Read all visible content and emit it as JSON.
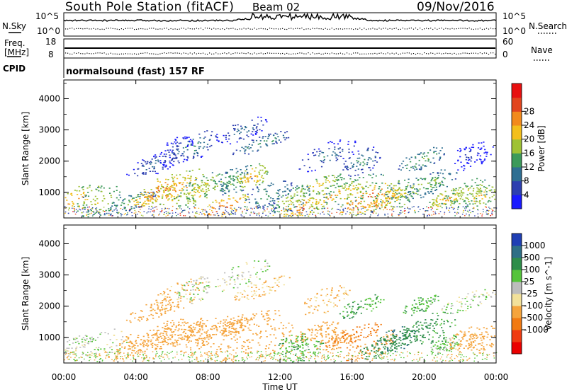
{
  "header": {
    "station": "South Pole Station (fitACF)",
    "beam": "Beam 02",
    "date": "09/Nov/2016"
  },
  "panels": {
    "nsky_label": "N.Sky",
    "nsky_ticks": [
      "10^5",
      "10^0"
    ],
    "nsearch_label": "N.Search",
    "freq_label": "Freq.",
    "freq_unit": "[MHz]",
    "freq_ticks": [
      "18",
      "8"
    ],
    "nave_label": "Nave",
    "nave_ticks": [
      "60",
      "0"
    ],
    "cpid_label": "CPID",
    "cpid_text": "normalsound (fast) 157 RF"
  },
  "axes": {
    "xlabel": "Time UT",
    "xticks": [
      "00:00",
      "04:00",
      "08:00",
      "12:00",
      "16:00",
      "20:00",
      "00:00"
    ],
    "ylabel": "Slant Range [km]",
    "yticks": [
      "1000",
      "2000",
      "3000",
      "4000"
    ]
  },
  "colorbars": {
    "power": {
      "label": "Power [dB]",
      "ticks": [
        "4",
        "8",
        "12",
        "16",
        "20",
        "24",
        "28"
      ],
      "colors": [
        "#1a1aff",
        "#2d3fb0",
        "#2f6f92",
        "#3c9a5a",
        "#9fc234",
        "#f3bf1c",
        "#f28a1c",
        "#e2451e",
        "#e81010"
      ]
    },
    "velocity": {
      "label": "Velocity [m s^-1]",
      "ticks": [
        "1000",
        "500",
        "100",
        "25",
        "-25",
        "-100",
        "-500",
        "-1000"
      ],
      "colors": [
        "#1f3fb4",
        "#2e6f86",
        "#2e8d4a",
        "#55c43a",
        "#bdbdbd",
        "#f2e19a",
        "#f5a43c",
        "#f27a12",
        "#ef3b12",
        "#ea0000"
      ]
    }
  },
  "chart_data": [
    {
      "type": "heatmap",
      "name": "Power",
      "xlabel": "Time UT",
      "ylabel": "Slant Range [km]",
      "xlim": [
        0,
        24
      ],
      "ylim": [
        180,
        4600
      ],
      "colorbar": "Power [dB]",
      "zlim": [
        0,
        30
      ],
      "blobs": [
        {
          "t": 0.5,
          "r": 750,
          "z": 22
        },
        {
          "t": 1.9,
          "r": 700,
          "z": 18
        },
        {
          "t": 3.5,
          "r": 650,
          "z": 14
        },
        {
          "t": 4.8,
          "r": 900,
          "z": 24
        },
        {
          "t": 5.6,
          "r": 1100,
          "z": 26
        },
        {
          "t": 6.5,
          "r": 1200,
          "z": 22
        },
        {
          "t": 7.3,
          "r": 1000,
          "z": 20
        },
        {
          "t": 8.0,
          "r": 1250,
          "z": 18
        },
        {
          "t": 8.7,
          "r": 500,
          "z": 26
        },
        {
          "t": 9.5,
          "r": 1400,
          "z": 14
        },
        {
          "t": 10.4,
          "r": 1500,
          "z": 22
        },
        {
          "t": 11.3,
          "r": 950,
          "z": 12
        },
        {
          "t": 12.5,
          "r": 800,
          "z": 16
        },
        {
          "t": 13.2,
          "r": 500,
          "z": 24
        },
        {
          "t": 14.0,
          "r": 1200,
          "z": 20
        },
        {
          "t": 15.0,
          "r": 900,
          "z": 22
        },
        {
          "t": 16.1,
          "r": 1100,
          "z": 18
        },
        {
          "t": 16.8,
          "r": 800,
          "z": 26
        },
        {
          "t": 17.5,
          "r": 700,
          "z": 24
        },
        {
          "t": 18.3,
          "r": 900,
          "z": 20
        },
        {
          "t": 19.3,
          "r": 1100,
          "z": 16
        },
        {
          "t": 20.4,
          "r": 1300,
          "z": 14
        },
        {
          "t": 21.2,
          "r": 800,
          "z": 22
        },
        {
          "t": 22.4,
          "r": 1000,
          "z": 18
        },
        {
          "t": 23.2,
          "r": 900,
          "z": 20
        },
        {
          "t": 5.0,
          "r": 1900,
          "z": 8
        },
        {
          "t": 6.2,
          "r": 2300,
          "z": 6
        },
        {
          "t": 7.2,
          "r": 2500,
          "z": 10
        },
        {
          "t": 9.9,
          "r": 3000,
          "z": 8
        },
        {
          "t": 11.0,
          "r": 2600,
          "z": 12
        },
        {
          "t": 14.5,
          "r": 2200,
          "z": 8
        },
        {
          "t": 16.5,
          "r": 2000,
          "z": 10
        },
        {
          "t": 19.8,
          "r": 2050,
          "z": 14
        },
        {
          "t": 22.6,
          "r": 2200,
          "z": 4
        }
      ]
    },
    {
      "type": "heatmap",
      "name": "Velocity",
      "xlabel": "Time UT",
      "ylabel": "Slant Range [km]",
      "xlim": [
        0,
        24
      ],
      "ylim": [
        180,
        4600
      ],
      "colorbar": "Velocity [m s^-1]",
      "zlim": [
        -1000,
        1000
      ],
      "blobs": [
        {
          "t": 0.5,
          "r": 750,
          "z": 0
        },
        {
          "t": 1.9,
          "r": 700,
          "z": 0
        },
        {
          "t": 3.5,
          "r": 650,
          "z": -150
        },
        {
          "t": 4.8,
          "r": 900,
          "z": -300
        },
        {
          "t": 5.6,
          "r": 1100,
          "z": -350
        },
        {
          "t": 6.5,
          "r": 1200,
          "z": -300
        },
        {
          "t": 7.3,
          "r": 1000,
          "z": -250
        },
        {
          "t": 8.0,
          "r": 1250,
          "z": -300
        },
        {
          "t": 8.7,
          "r": 500,
          "z": -300
        },
        {
          "t": 9.5,
          "r": 1400,
          "z": -200
        },
        {
          "t": 10.4,
          "r": 1500,
          "z": -250
        },
        {
          "t": 11.3,
          "r": 950,
          "z": -200
        },
        {
          "t": 12.5,
          "r": 800,
          "z": 80
        },
        {
          "t": 13.2,
          "r": 500,
          "z": 60
        },
        {
          "t": 14.0,
          "r": 1200,
          "z": -400
        },
        {
          "t": 15.0,
          "r": 900,
          "z": -200
        },
        {
          "t": 16.1,
          "r": 1100,
          "z": -600
        },
        {
          "t": 16.8,
          "r": 800,
          "z": -500
        },
        {
          "t": 17.5,
          "r": 700,
          "z": 300
        },
        {
          "t": 18.3,
          "r": 900,
          "z": 500
        },
        {
          "t": 19.3,
          "r": 1100,
          "z": 400
        },
        {
          "t": 20.4,
          "r": 1300,
          "z": 120
        },
        {
          "t": 21.2,
          "r": 800,
          "z": 60
        },
        {
          "t": 22.4,
          "r": 1000,
          "z": -150
        },
        {
          "t": 23.2,
          "r": 900,
          "z": -300
        },
        {
          "t": 5.0,
          "r": 1900,
          "z": -200
        },
        {
          "t": 6.2,
          "r": 2300,
          "z": -150
        },
        {
          "t": 7.2,
          "r": 2500,
          "z": 0
        },
        {
          "t": 9.9,
          "r": 3000,
          "z": 0
        },
        {
          "t": 11.0,
          "r": 2600,
          "z": -100
        },
        {
          "t": 14.5,
          "r": 2200,
          "z": -120
        },
        {
          "t": 16.5,
          "r": 2000,
          "z": 100
        },
        {
          "t": 19.8,
          "r": 2050,
          "z": 80
        },
        {
          "t": 22.6,
          "r": 2200,
          "z": 0
        }
      ]
    }
  ]
}
